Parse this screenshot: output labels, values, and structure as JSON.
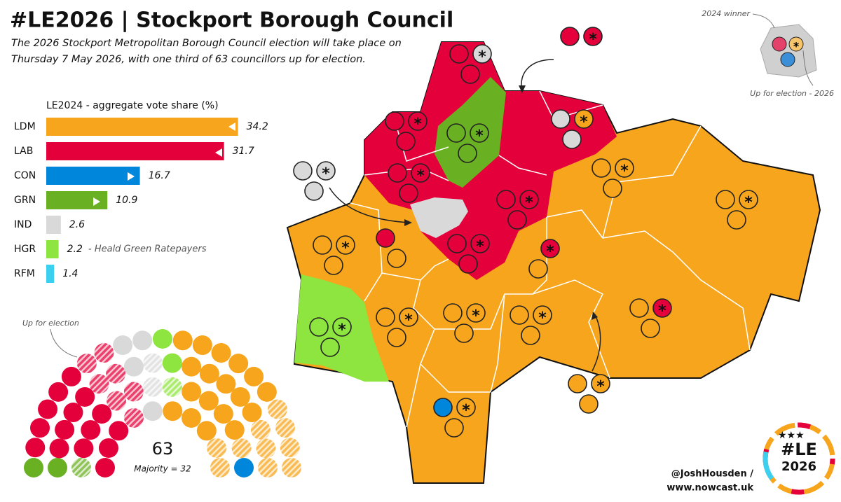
{
  "title": "#LE2026 | Stockport Borough Council",
  "subtitle": [
    "The 2026 Stockport Metropolitan Borough Council election will take place on",
    "Thursday 7 May 2026, with one third of 63 councillors up for election."
  ],
  "chart_data": {
    "type": "bar",
    "orientation": "horizontal",
    "title": "LE2024 - aggregate vote share (%)",
    "categories": [
      "LDM",
      "LAB",
      "CON",
      "GRN",
      "IND",
      "HGR",
      "RFM"
    ],
    "values": [
      34.2,
      31.7,
      16.7,
      10.9,
      2.6,
      2.2,
      1.4
    ],
    "colors": [
      "#f7a51c",
      "#e4003b",
      "#0087dc",
      "#6ab023",
      "#d9d9d9",
      "#8ee53f",
      "#3bd0ef"
    ],
    "annotation": "- Heald Green Ratepayers"
  },
  "parliament": {
    "total": 63,
    "majority_label": "Majority = 32",
    "annotation": "Up for election",
    "seats": [
      {
        "color": "#6ab023",
        "seats": 3,
        "up": 1
      },
      {
        "color": "#e4003b",
        "seats": 22,
        "up": 7
      },
      {
        "color": "#d9d9d9",
        "seats": 6,
        "up": 2
      },
      {
        "color": "#8ee53f",
        "seats": 3,
        "up": 1
      },
      {
        "color": "#f7a51c",
        "seats": 28,
        "up": 10
      },
      {
        "color": "#0087dc",
        "seats": 1,
        "up": 0
      }
    ]
  },
  "map_key": {
    "winner": "2024 winner",
    "up": "Up for election - 2026"
  },
  "credits": [
    "@JoshHousden /",
    "www.nowcast.uk"
  ],
  "logo": [
    "#LE",
    "2026"
  ]
}
